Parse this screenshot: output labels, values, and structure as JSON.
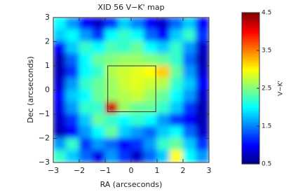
{
  "chart_data": {
    "type": "heatmap",
    "title": "XID 56 V−K' map",
    "xlabel": "RA (arcseconds)",
    "ylabel": "Dec (arcseconds)",
    "xlim": [
      -3,
      3
    ],
    "ylim": [
      -3,
      3
    ],
    "xticks": [
      {
        "value": -3,
        "label": "−3"
      },
      {
        "value": -2,
        "label": "−2"
      },
      {
        "value": -1,
        "label": "−1"
      },
      0,
      1,
      2,
      3
    ],
    "yticks": [
      {
        "value": -3,
        "label": "−3"
      },
      {
        "value": -2,
        "label": "−2"
      },
      {
        "value": -1,
        "label": "−1"
      },
      0,
      1,
      2,
      3
    ],
    "x": [
      -2.75,
      -2.25,
      -1.75,
      -1.25,
      -0.75,
      -0.25,
      0.25,
      0.75,
      1.25,
      1.75,
      2.25,
      2.75
    ],
    "y": [
      2.75,
      2.25,
      1.75,
      1.25,
      0.75,
      0.25,
      -0.25,
      -0.75,
      -1.25,
      -1.75,
      -2.25,
      -2.75
    ],
    "z": [
      [
        2.0,
        1.6,
        1.0,
        0.8,
        1.2,
        1.8,
        1.5,
        1.0,
        0.8,
        1.4,
        1.8,
        1.0
      ],
      [
        1.8,
        2.0,
        1.6,
        1.2,
        2.0,
        2.2,
        2.0,
        1.4,
        1.0,
        1.8,
        2.2,
        1.2
      ],
      [
        1.0,
        1.8,
        2.2,
        2.0,
        2.3,
        2.2,
        2.4,
        2.0,
        1.8,
        2.2,
        1.6,
        0.8
      ],
      [
        0.7,
        1.4,
        2.0,
        2.4,
        2.5,
        2.6,
        2.6,
        2.5,
        2.4,
        2.2,
        1.4,
        0.7
      ],
      [
        0.7,
        1.2,
        2.0,
        2.2,
        2.7,
        2.8,
        2.9,
        3.0,
        3.2,
        2.4,
        1.6,
        0.8
      ],
      [
        0.8,
        1.6,
        2.2,
        2.4,
        2.6,
        2.8,
        2.9,
        2.8,
        2.7,
        2.2,
        1.8,
        1.0
      ],
      [
        1.0,
        1.8,
        2.0,
        2.4,
        2.6,
        2.7,
        2.8,
        2.6,
        2.4,
        2.0,
        1.6,
        0.8
      ],
      [
        0.9,
        1.6,
        2.2,
        2.2,
        4.2,
        2.6,
        2.4,
        2.4,
        2.2,
        1.8,
        1.2,
        0.7
      ],
      [
        0.8,
        1.2,
        1.8,
        2.4,
        2.2,
        2.0,
        2.2,
        2.0,
        1.6,
        1.2,
        1.0,
        0.7
      ],
      [
        0.7,
        1.0,
        1.6,
        2.0,
        2.4,
        1.8,
        1.6,
        1.4,
        1.8,
        2.0,
        1.4,
        0.8
      ],
      [
        1.6,
        2.2,
        1.2,
        1.6,
        1.4,
        1.0,
        1.2,
        1.6,
        2.2,
        2.4,
        1.8,
        1.2
      ],
      [
        2.2,
        1.8,
        1.4,
        0.9,
        1.6,
        1.2,
        0.8,
        1.4,
        1.8,
        3.0,
        2.0,
        1.6
      ]
    ],
    "region": {
      "x": [
        -0.9,
        0.95
      ],
      "y": [
        -0.9,
        1.0
      ]
    },
    "colorbar": {
      "lim": [
        0.5,
        4.5
      ],
      "ticks": [
        0.5,
        1.5,
        2.5,
        3.5,
        4.5
      ],
      "label": "V−K'"
    }
  }
}
